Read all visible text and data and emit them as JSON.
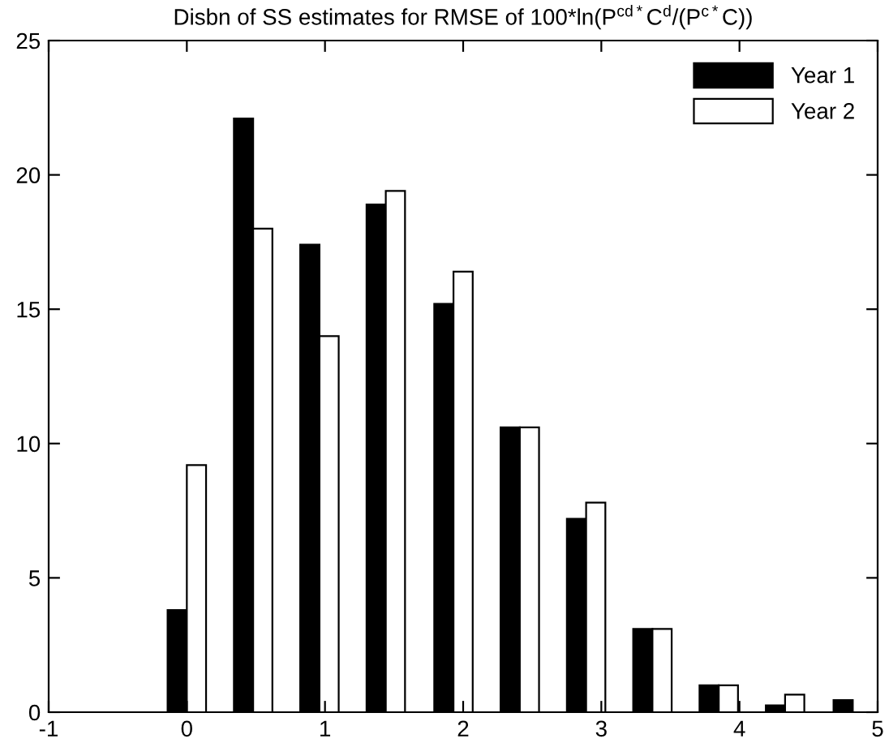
{
  "chart_data": {
    "type": "bar",
    "title": "Disbn of SS estimates for RMSE of 100*ln(P$^{cd*}$C$^{d}$/(P$^{c*}$C))",
    "x": [
      0,
      0.48,
      0.96,
      1.44,
      1.93,
      2.41,
      2.89,
      3.37,
      3.85,
      4.33,
      4.82
    ],
    "series": [
      {
        "name": "Year 1",
        "color": "#000000",
        "values": [
          3.8,
          22.1,
          17.4,
          18.9,
          15.2,
          10.6,
          7.2,
          3.1,
          1.0,
          0.25,
          0.45
        ]
      },
      {
        "name": "Year 2",
        "color": "#ffffff",
        "values": [
          9.2,
          18.0,
          14.0,
          19.4,
          16.4,
          10.6,
          7.8,
          3.1,
          1.0,
          0.65,
          null
        ]
      }
    ],
    "xlim": [
      -1,
      5
    ],
    "xticks": [
      -1,
      0,
      1,
      2,
      3,
      4,
      5
    ],
    "ylim": [
      0,
      25
    ],
    "yticks": [
      0,
      5,
      10,
      15,
      20,
      25
    ],
    "grid": false,
    "legend": "top right"
  }
}
